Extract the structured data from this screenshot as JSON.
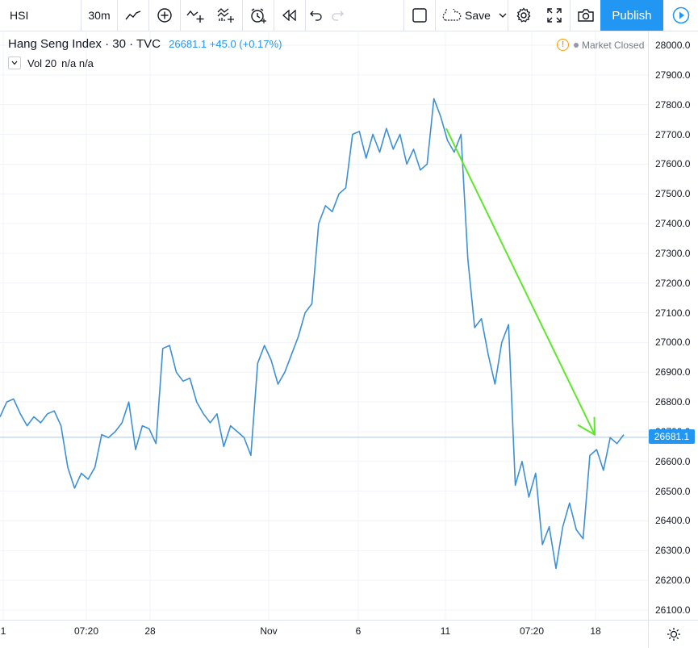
{
  "toolbar": {
    "symbol": "HSI",
    "interval": "30m",
    "save_label": "Save",
    "publish_label": "Publish"
  },
  "legend": {
    "title": "Hang Seng Index · 30 · TVC",
    "price_info": "26681.1 +45.0 (+0.17%)"
  },
  "volume": {
    "label": "Vol 20",
    "values": "n/a n/a"
  },
  "status": {
    "market": "Market Closed"
  },
  "colors": {
    "accent": "#2196f3",
    "line": "#3d8fd6",
    "arrow": "#5de82a",
    "warning": "#ff9800"
  },
  "current_price_tag": "26681.1",
  "chart_data": {
    "type": "line",
    "title": "Hang Seng Index · 30 · TVC",
    "ylim": [
      26050,
      28050
    ],
    "yticks": [
      "28000.0",
      "27900.0",
      "27800.0",
      "27700.0",
      "27600.0",
      "27500.0",
      "27400.0",
      "27300.0",
      "27200.0",
      "27100.0",
      "27000.0",
      "26900.0",
      "26800.0",
      "26700.0",
      "26600.0",
      "26500.0",
      "26400.0",
      "26300.0",
      "26200.0",
      "26100.0"
    ],
    "xtick_labels": [
      "1",
      "07:20",
      "28",
      "Nov",
      "6",
      "11",
      "07:20",
      "18"
    ],
    "current_price": 26681.1,
    "series": [
      {
        "values": [
          26750,
          26800,
          26810,
          26760,
          26720,
          26750,
          26730,
          26760,
          26770,
          26720,
          26580,
          26510,
          26560,
          26540,
          26580,
          26690,
          26680,
          26700,
          26730,
          26800,
          26640,
          26720,
          26710,
          26660,
          26980,
          26990,
          26900,
          26870,
          26880,
          26800,
          26760,
          26730,
          26760,
          26650,
          26720,
          26700,
          26680,
          26620,
          26930,
          26990,
          26940,
          26860,
          26900,
          26960,
          27020,
          27100,
          27130,
          27400,
          27460,
          27440,
          27500,
          27520,
          27700,
          27710,
          27620,
          27700,
          27640,
          27720,
          27650,
          27700,
          27600,
          27650,
          27580,
          27600,
          27820,
          27760,
          27680,
          27640,
          27700,
          27280,
          27050,
          27080,
          26960,
          26860,
          27000,
          27060,
          26520,
          26600,
          26480,
          26560,
          26320,
          26380,
          26240,
          26380,
          26460,
          26370,
          26340,
          26620,
          26640,
          26570,
          26680,
          26660,
          26690
        ]
      }
    ],
    "annotations": [
      {
        "type": "arrow",
        "from": [
          0.0,
          27720
        ],
        "to": [
          1.0,
          26690
        ]
      }
    ]
  }
}
